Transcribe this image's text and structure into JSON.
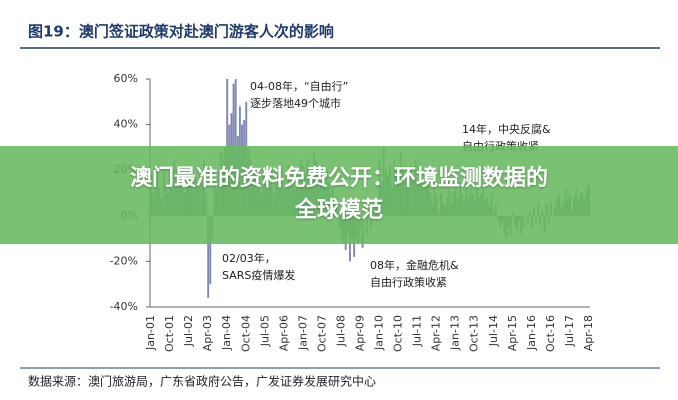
{
  "chart_data": {
    "type": "bar",
    "title": "图19：澳门签证政策对赴澳门游客人次的影响",
    "categories": [
      "Jan-01",
      null,
      null,
      null,
      null,
      null,
      null,
      null,
      null,
      "Oct-01",
      null,
      null,
      null,
      null,
      null,
      null,
      null,
      null,
      "Jul-02",
      null,
      null,
      null,
      null,
      null,
      null,
      null,
      null,
      "Apr-03",
      null,
      null,
      null,
      null,
      null,
      null,
      null,
      null,
      "Jan-04",
      null,
      null,
      null,
      null,
      null,
      null,
      null,
      null,
      "Oct-04",
      null,
      null,
      null,
      null,
      null,
      null,
      null,
      null,
      "Jul-05",
      null,
      null,
      null,
      null,
      null,
      null,
      null,
      null,
      "Apr-06",
      null,
      null,
      null,
      null,
      null,
      null,
      null,
      null,
      "Jan-07",
      null,
      null,
      null,
      null,
      null,
      null,
      null,
      null,
      "Oct-07",
      null,
      null,
      null,
      null,
      null,
      null,
      null,
      null,
      "Jul-08",
      null,
      null,
      null,
      null,
      null,
      null,
      null,
      null,
      "Apr-09",
      null,
      null,
      null,
      null,
      null,
      null,
      null,
      null,
      "Jan-10",
      null,
      null,
      null,
      null,
      null,
      null,
      null,
      null,
      "Oct-10",
      null,
      null,
      null,
      null,
      null,
      null,
      null,
      null,
      "Jul-11",
      null,
      null,
      null,
      null,
      null,
      null,
      null,
      null,
      "Apr-12",
      null,
      null,
      null,
      null,
      null,
      null,
      null,
      null,
      "Jan-13",
      null,
      null,
      null,
      null,
      null,
      null,
      null,
      null,
      "Oct-13",
      null,
      null,
      null,
      null,
      null,
      null,
      null,
      null,
      "Jul-14",
      null,
      null,
      null,
      null,
      null,
      null,
      null,
      null,
      "Apr-15",
      null,
      null,
      null,
      null,
      null,
      null,
      null,
      null,
      "Jan-16",
      null,
      null,
      null,
      null,
      null,
      null,
      null,
      null,
      "Oct-16",
      null,
      null,
      null,
      null,
      null,
      null,
      null,
      null,
      "Jul-17",
      null,
      null,
      null,
      null,
      null,
      null,
      null,
      null,
      "Apr-18"
    ],
    "values": [
      18,
      10,
      15,
      22,
      12,
      8,
      20,
      14,
      10,
      16,
      12,
      25,
      20,
      15,
      18,
      22,
      10,
      14,
      16,
      20,
      12,
      18,
      15,
      22,
      14,
      25,
      10,
      -36,
      -30,
      -10,
      15,
      12,
      20,
      28,
      25,
      30,
      60,
      40,
      45,
      58,
      60,
      35,
      48,
      40,
      42,
      50,
      30,
      25,
      15,
      20,
      12,
      18,
      10,
      22,
      14,
      12,
      16,
      20,
      10,
      14,
      18,
      15,
      20,
      12,
      14,
      22,
      16,
      18,
      12,
      20,
      15,
      25,
      22,
      18,
      25,
      20,
      15,
      28,
      24,
      18,
      20,
      22,
      16,
      20,
      15,
      10,
      12,
      5,
      8,
      -5,
      -10,
      -12,
      -15,
      -8,
      -20,
      -10,
      -18,
      -10,
      -12,
      -5,
      -14,
      0,
      -8,
      5,
      -6,
      2,
      8,
      5,
      25,
      15,
      30,
      20,
      18,
      22,
      12,
      25,
      20,
      15,
      28,
      22,
      15,
      20,
      12,
      22,
      18,
      25,
      14,
      16,
      20,
      12,
      18,
      15,
      10,
      5,
      12,
      8,
      2,
      10,
      6,
      4,
      8,
      12,
      5,
      10,
      12,
      8,
      15,
      10,
      6,
      14,
      8,
      12,
      10,
      6,
      12,
      8,
      10,
      12,
      6,
      8,
      4,
      10,
      2,
      5,
      -2,
      -5,
      -3,
      -8,
      -10,
      -5,
      -8,
      2,
      -4,
      -6,
      -2,
      -8,
      -5,
      0,
      -3,
      2,
      -6,
      4,
      -2,
      6,
      -4,
      2,
      -8,
      5,
      -3,
      6,
      0,
      4,
      8,
      10,
      4,
      6,
      12,
      8,
      10,
      2,
      8,
      12,
      6,
      10,
      10,
      8,
      12,
      14
    ],
    "color": "#7f88b4",
    "ylim": [
      -40,
      60
    ],
    "yticks": [
      {
        "value": -40,
        "label": "-40%"
      },
      {
        "value": -20,
        "label": "-20%"
      },
      {
        "value": 0,
        "label": "0%"
      },
      {
        "value": 20,
        "label": "20%"
      },
      {
        "value": 40,
        "label": "40%"
      },
      {
        "value": 60,
        "label": "60%"
      }
    ],
    "annotations": [
      "04-08年，“自由行”",
      "逐步落地49个城市",
      "14年，中央反腐&",
      "自由行政策收紧",
      "02/03年，",
      "SARS疫情爆发",
      "08年，金融危机&",
      "自由行政策收紧"
    ],
    "source": "数据来源：澳门旅游局，广东省政府公告，广发证券发展研究中心"
  },
  "banner": {
    "lines": [
      "澳门最准的资料免费公开：环境监测数据的",
      "全球模范"
    ]
  }
}
